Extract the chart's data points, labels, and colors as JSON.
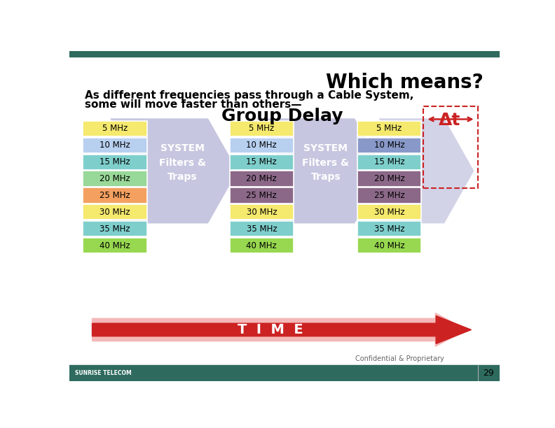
{
  "title": "Which means?",
  "subtitle_line1": "As different frequencies pass through a Cable System,",
  "subtitle_line2": "some will move faster than others—",
  "group_delay_text": "Group Delay",
  "delta_t_text": "Δt",
  "system_text": "SYSTEM\nFilters &\nTraps",
  "time_text": "T  I  M  E",
  "frequencies": [
    "5 MHz",
    "10 MHz",
    "15 MHz",
    "20 MHz",
    "25 MHz",
    "30 MHz",
    "35 MHz",
    "40 MHz"
  ],
  "colors_group1": [
    "#f5e96e",
    "#b8d0f0",
    "#7ecfcc",
    "#98d898",
    "#f4a060",
    "#f5e96e",
    "#7ecfcc",
    "#98d850"
  ],
  "colors_group2": [
    "#f5e96e",
    "#b8d0f0",
    "#7ecfcc",
    "#8b6888",
    "#8b6888",
    "#f5e96e",
    "#7ecfcc",
    "#98d850"
  ],
  "colors_group3": [
    "#f5e96e",
    "#8898c8",
    "#7ecfcc",
    "#8b6888",
    "#8b6888",
    "#f5e96e",
    "#7ecfcc",
    "#98d850"
  ],
  "arrow_color": "#9898c8",
  "time_arrow_color": "#cc2222",
  "time_arrow_bg": "#f5b8b8",
  "top_bar_color": "#2e6b5e",
  "page_bg": "#ffffff",
  "confidential_text": "Confidential & Proprietary",
  "page_number": "29",
  "bottom_bar_color": "#2e6b5e",
  "dashed_rect_color": "#cc2222"
}
